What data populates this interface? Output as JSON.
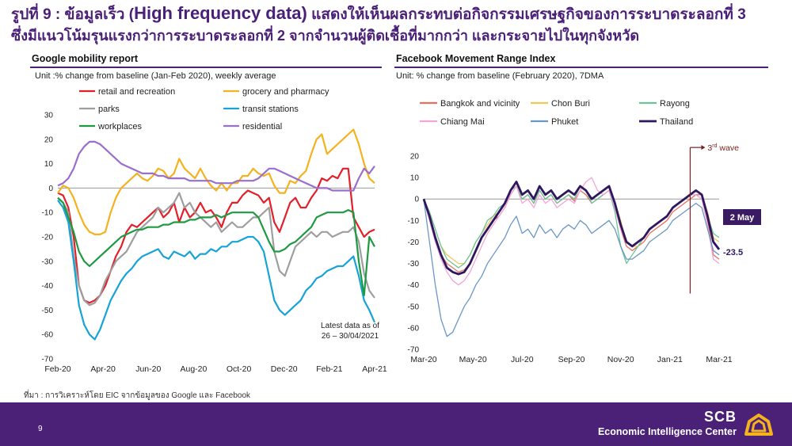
{
  "title": {
    "prefix": "รูปที่ 9 : ข้อมูลเร็ว (",
    "highlight": "High frequency data)",
    "suffix": " แสดงให้เห็นผลกระทบต่อกิจกรรมเศรษฐกิจของการระบาดระลอกที่ 3",
    "line2": "ซึ่งมีแนวโน้มรุนแรงกว่าการระบาดระลอกที่ 2 จากจำนวนผู้ติดเชื้อที่มากกว่า และกระจายไปในทุกจังหวัด"
  },
  "left_panel": {
    "heading": "Google mobility report",
    "unit": "Unit :% change from baseline (Jan-Feb 2020), weekly average"
  },
  "right_panel": {
    "heading": "Facebook Movement Range Index",
    "unit": "Unit: % change from baseline (February 2020), 7DMA"
  },
  "source": "ที่มา : การวิเคราะห์โดย EIC จากข้อมูลของ Google และ Facebook",
  "footer": {
    "page": "9",
    "brand": "SCB",
    "tagline": "Economic Intelligence Center"
  },
  "colors": {
    "accent": "#4b2178"
  },
  "chart_data": [
    {
      "type": "line",
      "title": "Google mobility report",
      "ylim": [
        -70,
        30
      ],
      "yticks": [
        30,
        20,
        10,
        0,
        -10,
        -20,
        -30,
        -40,
        -50,
        -60,
        -70
      ],
      "xticks": [
        "Feb-20",
        "Apr-20",
        "Jun-20",
        "Aug-20",
        "Oct-20",
        "Dec-20",
        "Feb-21",
        "Apr-21"
      ],
      "legend_placement": "top",
      "annotation": "Latest data as of 26 – 30/04/2021",
      "series": [
        {
          "name": "retail and recreation",
          "color": "#e3202a",
          "values": [
            -2,
            -3,
            -8,
            -20,
            -40,
            -46,
            -47,
            -46,
            -44,
            -40,
            -34,
            -28,
            -24,
            -18,
            -15,
            -16,
            -14,
            -12,
            -10,
            -8,
            -12,
            -10,
            -6,
            -14,
            -8,
            -12,
            -10,
            -6,
            -10,
            -9,
            -12,
            -16,
            -10,
            -6,
            -6,
            -3,
            -1,
            -2,
            -3,
            -6,
            -4,
            -14,
            -18,
            -12,
            -6,
            -4,
            -8,
            -8,
            -4,
            -1,
            4,
            3,
            5,
            4,
            8,
            8,
            -12,
            -16,
            -20,
            -18,
            -17
          ]
        },
        {
          "name": "grocery and pharmacy",
          "color": "#f3b21e",
          "values": [
            -2,
            1,
            0,
            -4,
            -10,
            -15,
            -18,
            -19,
            -19,
            -18,
            -10,
            -4,
            0,
            2,
            4,
            6,
            4,
            3,
            5,
            8,
            7,
            4,
            6,
            12,
            8,
            6,
            4,
            8,
            4,
            1,
            -1,
            2,
            -1,
            2,
            2,
            5,
            5,
            8,
            6,
            5,
            6,
            1,
            -2,
            -2,
            3,
            2,
            5,
            7,
            14,
            20,
            22,
            14,
            16,
            18,
            20,
            22,
            24,
            18,
            10,
            4,
            2
          ]
        },
        {
          "name": "parks",
          "color": "#9e9e9e",
          "values": [
            -4,
            -6,
            -10,
            -28,
            -40,
            -46,
            -48,
            -47,
            -44,
            -38,
            -34,
            -30,
            -28,
            -26,
            -22,
            -18,
            -16,
            -14,
            -12,
            -8,
            -10,
            -8,
            -6,
            -2,
            -8,
            -6,
            -10,
            -12,
            -14,
            -16,
            -14,
            -18,
            -16,
            -14,
            -16,
            -16,
            -14,
            -12,
            -12,
            -10,
            -8,
            -26,
            -34,
            -36,
            -30,
            -24,
            -22,
            -20,
            -18,
            -20,
            -18,
            -18,
            -20,
            -19,
            -18,
            -18,
            -16,
            -22,
            -35,
            -42,
            -45
          ]
        },
        {
          "name": "transit stations",
          "color": "#17a3d6",
          "values": [
            -5,
            -8,
            -14,
            -30,
            -48,
            -56,
            -60,
            -62,
            -58,
            -52,
            -46,
            -42,
            -38,
            -35,
            -33,
            -30,
            -28,
            -27,
            -26,
            -25,
            -28,
            -29,
            -26,
            -27,
            -28,
            -26,
            -29,
            -27,
            -27,
            -25,
            -26,
            -24,
            -24,
            -22,
            -22,
            -21,
            -20,
            -20,
            -22,
            -26,
            -36,
            -46,
            -50,
            -52,
            -50,
            -48,
            -46,
            -42,
            -40,
            -37,
            -36,
            -34,
            -33,
            -32,
            -32,
            -30,
            -28,
            -36,
            -46,
            -50,
            -55
          ]
        },
        {
          "name": "workplaces",
          "color": "#1f9a42",
          "values": [
            -4,
            -6,
            -12,
            -18,
            -26,
            -30,
            -32,
            -30,
            -28,
            -26,
            -24,
            -22,
            -20,
            -19,
            -18,
            -17,
            -17,
            -16,
            -16,
            -16,
            -15,
            -15,
            -14,
            -14,
            -14,
            -13,
            -13,
            -12,
            -12,
            -12,
            -11,
            -12,
            -11,
            -10,
            -10,
            -10,
            -10,
            -10,
            -12,
            -17,
            -22,
            -26,
            -26,
            -25,
            -23,
            -22,
            -20,
            -18,
            -16,
            -12,
            -11,
            -10,
            -10,
            -10,
            -10,
            -9,
            -10,
            -30,
            -44,
            -20,
            -24
          ]
        },
        {
          "name": "residential",
          "color": "#9a6fcb",
          "values": [
            1,
            2,
            4,
            8,
            14,
            17,
            19,
            19,
            18,
            16,
            14,
            12,
            10,
            9,
            8,
            7,
            6,
            6,
            6,
            5,
            5,
            4,
            4,
            4,
            4,
            3,
            3,
            3,
            3,
            3,
            2,
            2,
            2,
            2,
            3,
            3,
            3,
            3,
            4,
            6,
            8,
            8,
            7,
            6,
            5,
            4,
            3,
            2,
            1,
            0,
            0,
            0,
            -1,
            -1,
            -1,
            -1,
            -1,
            4,
            8,
            6,
            9
          ]
        }
      ]
    },
    {
      "type": "line",
      "title": "Facebook Movement Range Index",
      "ylim": [
        -70,
        20
      ],
      "yticks": [
        20,
        10,
        0,
        -10,
        -20,
        -30,
        -40,
        -50,
        -60,
        -70
      ],
      "xticks": [
        "Mar-20",
        "May-20",
        "Jul-20",
        "Sep-20",
        "Nov-20",
        "Jan-21",
        "Mar-21"
      ],
      "legend_placement": "top",
      "annotations": {
        "wave_label": "3",
        "wave_sup": "rd",
        "wave_text": " wave",
        "date_box": "2 May",
        "last_value": "-23.5"
      },
      "series": [
        {
          "name": "Bangkok and vicinity",
          "color": "#e87060",
          "values": [
            0,
            -8,
            -18,
            -26,
            -30,
            -32,
            -34,
            -33,
            -30,
            -24,
            -18,
            -14,
            -10,
            -8,
            -4,
            2,
            6,
            0,
            2,
            -2,
            4,
            0,
            2,
            -2,
            0,
            2,
            -1,
            4,
            2,
            -2,
            0,
            2,
            4,
            -4,
            -14,
            -22,
            -24,
            -22,
            -20,
            -16,
            -14,
            -12,
            -10,
            -6,
            -4,
            -2,
            0,
            2,
            2,
            -10,
            -26,
            -28
          ]
        },
        {
          "name": "Chon Buri",
          "color": "#f0c85a",
          "values": [
            0,
            -6,
            -14,
            -22,
            -26,
            -28,
            -30,
            -30,
            -26,
            -20,
            -16,
            -12,
            -8,
            -6,
            -2,
            4,
            8,
            2,
            4,
            0,
            6,
            2,
            4,
            0,
            2,
            4,
            2,
            6,
            4,
            0,
            2,
            4,
            6,
            -2,
            -10,
            -20,
            -22,
            -22,
            -18,
            -14,
            -12,
            -10,
            -8,
            -4,
            -2,
            0,
            2,
            4,
            2,
            -6,
            -18,
            -20
          ]
        },
        {
          "name": "Rayong",
          "color": "#6cc39a",
          "values": [
            0,
            -6,
            -14,
            -22,
            -28,
            -30,
            -32,
            -30,
            -26,
            -20,
            -16,
            -10,
            -8,
            -4,
            -2,
            4,
            6,
            0,
            2,
            -2,
            4,
            0,
            2,
            -2,
            0,
            2,
            0,
            6,
            4,
            -2,
            0,
            2,
            4,
            -6,
            -22,
            -30,
            -26,
            -22,
            -18,
            -14,
            -12,
            -10,
            -8,
            -4,
            -2,
            0,
            2,
            4,
            2,
            -8,
            -16,
            -18
          ]
        },
        {
          "name": "Chiang Mai",
          "color": "#f2a6d6",
          "values": [
            0,
            -10,
            -20,
            -28,
            -34,
            -38,
            -40,
            -38,
            -34,
            -28,
            -22,
            -16,
            -12,
            -8,
            -4,
            2,
            6,
            -2,
            0,
            -4,
            2,
            -2,
            0,
            -4,
            -2,
            0,
            -2,
            4,
            8,
            10,
            4,
            2,
            4,
            -4,
            -14,
            -20,
            -22,
            -20,
            -18,
            -14,
            -12,
            -10,
            -8,
            -4,
            -2,
            0,
            2,
            2,
            0,
            -12,
            -28,
            -30
          ]
        },
        {
          "name": "Phuket",
          "color": "#6a97c3",
          "values": [
            0,
            -20,
            -40,
            -56,
            -64,
            -62,
            -56,
            -50,
            -46,
            -40,
            -36,
            -30,
            -26,
            -22,
            -18,
            -12,
            -8,
            -16,
            -14,
            -18,
            -12,
            -16,
            -14,
            -18,
            -14,
            -12,
            -14,
            -10,
            -12,
            -16,
            -14,
            -12,
            -10,
            -14,
            -22,
            -28,
            -28,
            -26,
            -24,
            -20,
            -18,
            -16,
            -14,
            -10,
            -8,
            -6,
            -4,
            -2,
            -4,
            -14,
            -24,
            -26
          ]
        },
        {
          "name": "Thailand",
          "color": "#2d175e",
          "values": [
            0,
            -8,
            -18,
            -26,
            -32,
            -34,
            -35,
            -34,
            -30,
            -24,
            -18,
            -14,
            -10,
            -6,
            -2,
            4,
            8,
            2,
            4,
            0,
            6,
            2,
            4,
            0,
            2,
            4,
            2,
            6,
            4,
            0,
            2,
            4,
            6,
            -2,
            -12,
            -20,
            -22,
            -20,
            -18,
            -14,
            -12,
            -10,
            -8,
            -4,
            -2,
            0,
            2,
            4,
            2,
            -8,
            -20,
            -23.5
          ]
        }
      ]
    }
  ]
}
